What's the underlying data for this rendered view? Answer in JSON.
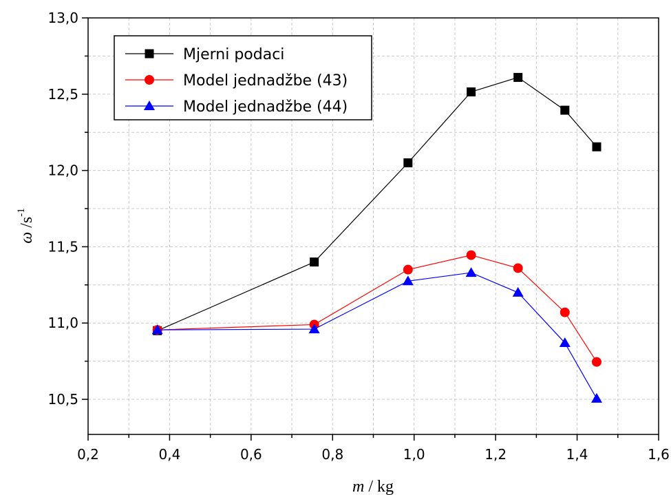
{
  "chart_data": {
    "type": "line",
    "xlabel_var": "m",
    "xlabel_unit": " / kg",
    "ylabel_var": "ω",
    "ylabel_unit": " /s",
    "ylabel_sup": "-1",
    "xlim": [
      0.2,
      1.6
    ],
    "ylim": [
      10.27,
      13.0
    ],
    "xticks": [
      0.2,
      0.4,
      0.6,
      0.8,
      1.0,
      1.2,
      1.4,
      1.6
    ],
    "xtick_labels": [
      "0,2",
      "0,4",
      "0,6",
      "0,8",
      "1,0",
      "1,2",
      "1,4",
      "1,6"
    ],
    "yticks": [
      10.5,
      11.0,
      11.5,
      12.0,
      12.5,
      13.0
    ],
    "ytick_labels": [
      "10,5",
      "11,0",
      "11,5",
      "12,0",
      "12,5",
      "13,0"
    ],
    "grid": true,
    "legend_position": "top-left",
    "series": [
      {
        "name": "Mjerni podaci",
        "color": "#000000",
        "marker": "square",
        "x": [
          0.37,
          0.755,
          0.985,
          1.14,
          1.255,
          1.37,
          1.448
        ],
        "y": [
          10.95,
          11.4,
          12.05,
          12.515,
          12.61,
          12.395,
          12.155
        ]
      },
      {
        "name": "Model jednadžbe (43)",
        "color": "#ff0000",
        "marker": "circle",
        "x": [
          0.37,
          0.755,
          0.985,
          1.14,
          1.255,
          1.37,
          1.448
        ],
        "y": [
          10.955,
          10.99,
          11.35,
          11.445,
          11.36,
          11.07,
          10.745
        ]
      },
      {
        "name": "Model jednadžbe (44)",
        "color": "#0000ff",
        "marker": "triangle",
        "x": [
          0.37,
          0.755,
          0.985,
          1.14,
          1.255,
          1.37,
          1.448
        ],
        "y": [
          10.955,
          10.96,
          11.275,
          11.33,
          11.2,
          10.87,
          10.505
        ]
      }
    ]
  }
}
